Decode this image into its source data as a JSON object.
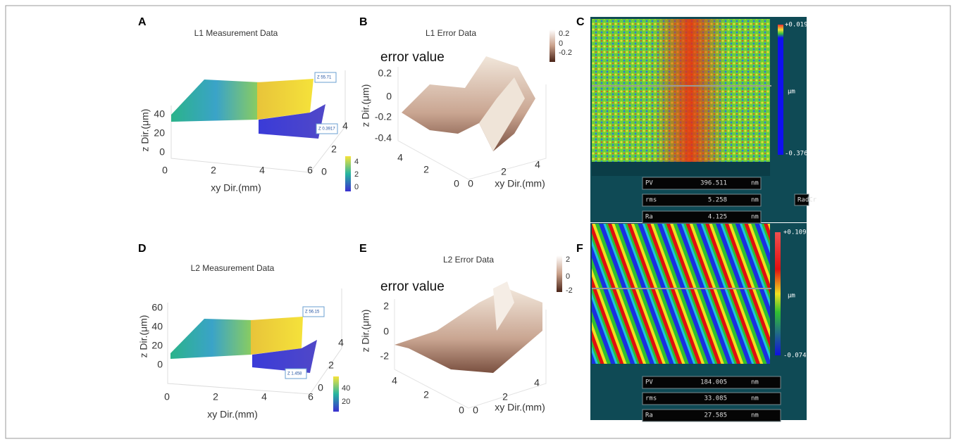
{
  "panels": [
    {
      "letter": "A",
      "title": "L1 Measurement Data",
      "z_label": "z Dir.(μm)",
      "xy_label": "xy Dir.(mm)",
      "z_ticks": [
        "40",
        "20",
        "0"
      ],
      "x_ticks": [
        "0",
        "2",
        "4",
        "6"
      ],
      "y_ticks": [
        "0",
        "2",
        "4"
      ],
      "colorbar_ticks": [
        "4",
        "2",
        "0"
      ],
      "datatips": [
        "Z 55.71",
        "Z 0.3917"
      ]
    },
    {
      "letter": "B",
      "title": "L1 Error Data",
      "annotation": "error value",
      "z_label": "z Dir.(μm)",
      "xy_label": "xy Dir.(mm)",
      "z_ticks": [
        "0.2",
        "0",
        "-0.2",
        "-0.4"
      ],
      "y_ticks": [
        "4",
        "2",
        "0"
      ],
      "x_ticks": [
        "0",
        "2",
        "4"
      ],
      "colorbar_ticks": [
        "0.2",
        "0",
        "-0.2"
      ]
    },
    {
      "letter": "C",
      "scale_max": "+0.01993",
      "unit": "μm",
      "scale_min": "-0.37658",
      "stats": [
        [
          "PV",
          "396.511",
          "nm"
        ],
        [
          "rms",
          "5.258",
          "nm"
        ],
        [
          "Ra",
          "4.125",
          "nm"
        ]
      ],
      "side_label": "RadCr"
    },
    {
      "letter": "D",
      "title": "L2 Measurement Data",
      "z_label": "z Dir.(μm)",
      "xy_label": "xy Dir.(mm)",
      "z_ticks": [
        "60",
        "40",
        "20",
        "0"
      ],
      "x_ticks": [
        "0",
        "2",
        "4",
        "6"
      ],
      "y_ticks": [
        "0",
        "2",
        "4"
      ],
      "colorbar_ticks": [
        "40",
        "20"
      ],
      "datatips": [
        "Z 56.15",
        "Z 1.458"
      ]
    },
    {
      "letter": "E",
      "title": "L2 Error Data",
      "annotation": "error value",
      "z_label": "z Dir.(μm)",
      "xy_label": "xy Dir.(mm)",
      "z_ticks": [
        "2",
        "0",
        "-2"
      ],
      "y_ticks": [
        "4",
        "2",
        "0"
      ],
      "x_ticks": [
        "0",
        "2",
        "4"
      ],
      "colorbar_ticks": [
        "2",
        "0",
        "-2"
      ]
    },
    {
      "letter": "F",
      "scale_max": "+0.10949",
      "unit": "μm",
      "scale_min": "-0.07451",
      "stats": [
        [
          "PV",
          "184.005",
          "nm"
        ],
        [
          "rms",
          "33.085",
          "nm"
        ],
        [
          "Ra",
          "27.585",
          "nm"
        ]
      ]
    }
  ]
}
